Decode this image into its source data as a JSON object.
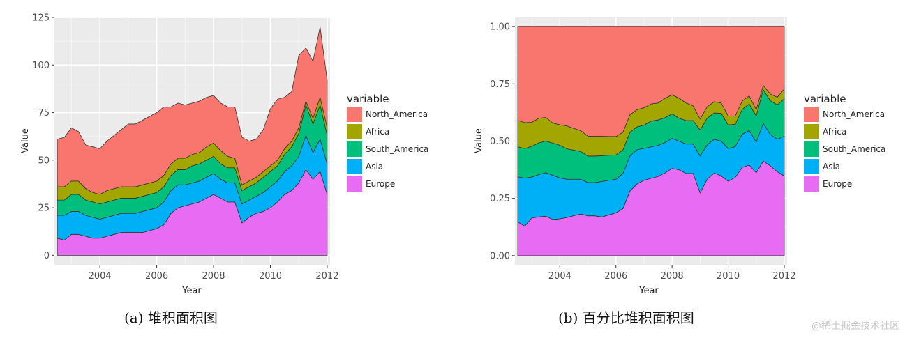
{
  "captions": {
    "a": "(a)  堆积面积图",
    "b": "(b)  百分比堆积面积图"
  },
  "watermark": "@稀土掘金技术社区",
  "chart_data": [
    {
      "type": "area",
      "stacked": true,
      "xlabel": "Year",
      "ylabel": "Value",
      "xlim": [
        2002.4,
        2012.1
      ],
      "ylim": [
        -5,
        125
      ],
      "xticks": [
        2004,
        2006,
        2008,
        2010,
        2012
      ],
      "yticks": [
        0,
        25,
        50,
        75,
        100,
        125
      ],
      "grid": true,
      "legend": {
        "title": "variable",
        "position": "right",
        "entries": [
          "North_America",
          "Africa",
          "South_America",
          "Asia",
          "Europe"
        ]
      },
      "colors": {
        "North_America": "#F8766D",
        "Africa": "#A3A500",
        "South_America": "#00BF7D",
        "Asia": "#00B0F6",
        "Europe": "#E76BF3"
      },
      "x": [
        2002.5,
        2002.75,
        2003,
        2003.25,
        2003.5,
        2003.75,
        2004,
        2004.25,
        2004.5,
        2004.75,
        2005,
        2005.25,
        2005.5,
        2005.75,
        2006,
        2006.25,
        2006.5,
        2006.75,
        2007,
        2007.25,
        2007.5,
        2007.75,
        2008,
        2008.25,
        2008.5,
        2008.75,
        2009,
        2009.25,
        2009.5,
        2009.75,
        2010,
        2010.25,
        2010.5,
        2010.75,
        2011,
        2011.25,
        2011.5,
        2011.75,
        2012
      ],
      "series": [
        {
          "name": "Europe",
          "values": [
            9,
            8,
            11,
            11,
            10,
            9,
            9,
            10,
            11,
            12,
            12,
            12,
            12,
            13,
            14,
            16,
            22,
            25,
            26,
            27,
            28,
            30,
            32,
            30,
            28,
            28,
            17,
            20,
            22,
            23,
            25,
            28,
            32,
            34,
            38,
            45,
            40,
            44,
            32
          ]
        },
        {
          "name": "Asia",
          "values": [
            12,
            13,
            12,
            12,
            11,
            11,
            10,
            10,
            10,
            10,
            10,
            10,
            11,
            11,
            11,
            12,
            12,
            12,
            11,
            11,
            11,
            11,
            11,
            10,
            10,
            10,
            10,
            9,
            9,
            10,
            11,
            11,
            12,
            13,
            14,
            18,
            14,
            17,
            16
          ]
        },
        {
          "name": "South_America",
          "values": [
            8,
            8,
            9,
            9,
            8,
            8,
            8,
            8,
            8,
            8,
            8,
            8,
            8,
            8,
            8,
            8,
            8,
            8,
            8,
            9,
            9,
            9,
            9,
            8,
            8,
            8,
            7,
            7,
            7,
            8,
            8,
            8,
            9,
            10,
            12,
            16,
            15,
            18,
            15
          ]
        },
        {
          "name": "Africa",
          "values": [
            7,
            7,
            7,
            7,
            6,
            5,
            5,
            6,
            6,
            6,
            6,
            6,
            6,
            6,
            6,
            6,
            6,
            6,
            6,
            6,
            6,
            7,
            7,
            7,
            6,
            5,
            3,
            3,
            3,
            3,
            3,
            3,
            3,
            3,
            3,
            2,
            3,
            4,
            4
          ]
        },
        {
          "name": "North_America",
          "values": [
            25,
            26,
            28,
            26,
            23,
            24,
            24,
            26,
            28,
            30,
            33,
            33,
            34,
            35,
            36,
            36,
            30,
            29,
            28,
            27,
            27,
            26,
            25,
            25,
            26,
            27,
            25,
            21,
            20,
            22,
            30,
            32,
            27,
            26,
            38,
            28,
            30,
            37,
            25
          ]
        }
      ]
    },
    {
      "type": "area",
      "stacked": true,
      "normalized": true,
      "xlabel": "Year",
      "ylabel": "Value",
      "xlim": [
        2002.4,
        2012.1
      ],
      "ylim": [
        -0.04,
        1.04
      ],
      "xticks": [
        2004,
        2006,
        2008,
        2010,
        2012
      ],
      "yticks": [
        0,
        0.25,
        0.5,
        0.75,
        1.0
      ],
      "ytick_labels": [
        "0.00",
        "0.25",
        "0.50",
        "0.75",
        "1.00"
      ],
      "grid": true,
      "legend": {
        "title": "variable",
        "position": "right",
        "entries": [
          "North_America",
          "Africa",
          "South_America",
          "Asia",
          "Europe"
        ]
      }
    }
  ]
}
